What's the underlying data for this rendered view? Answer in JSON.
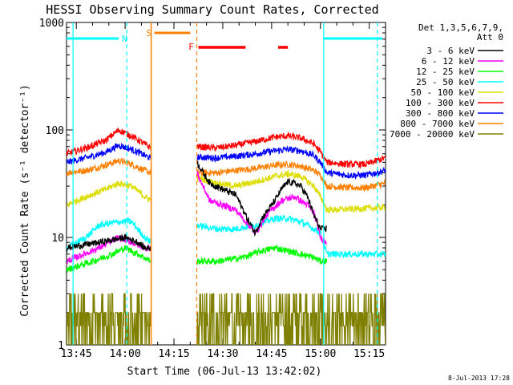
{
  "chart_data": {
    "type": "line",
    "title": "HESSI Observing Summary Count Rates, Corrected",
    "xlabel": "Start Time (06-Jul-13 13:42:02)",
    "ylabel": "Corrected Count Rate (s⁻¹ detector⁻¹)",
    "y_scale": "log",
    "ylim": [
      1,
      1000
    ],
    "xlim_minutes": [
      0,
      98
    ],
    "x_ticks": [
      {
        "m": 3,
        "label": "13:45"
      },
      {
        "m": 18,
        "label": "14:00"
      },
      {
        "m": 33,
        "label": "14:15"
      },
      {
        "m": 48,
        "label": "14:30"
      },
      {
        "m": 63,
        "label": "14:45"
      },
      {
        "m": 78,
        "label": "15:00"
      },
      {
        "m": 93,
        "label": "15:15"
      }
    ],
    "y_ticks": [
      {
        "v": 1,
        "label": "1"
      },
      {
        "v": 10,
        "label": "10"
      },
      {
        "v": 100,
        "label": "100"
      },
      {
        "v": 1000,
        "label": "1000"
      }
    ],
    "legend_header": [
      "Det 1,3,5,6,7,9,",
      "Att 0"
    ],
    "legend_position": "top-right",
    "gap_minutes": [
      26,
      40
    ],
    "series": [
      {
        "name": "3 - 6 keV",
        "color": "#000000",
        "points": [
          [
            0,
            8
          ],
          [
            10,
            9
          ],
          [
            18,
            10
          ],
          [
            22,
            9
          ],
          [
            24,
            8
          ],
          [
            26,
            8
          ],
          [
            40,
            50
          ],
          [
            44,
            32
          ],
          [
            48,
            28
          ],
          [
            52,
            25
          ],
          [
            56,
            14
          ],
          [
            58,
            11
          ],
          [
            60,
            15
          ],
          [
            64,
            22
          ],
          [
            66,
            28
          ],
          [
            68,
            33
          ],
          [
            70,
            32
          ],
          [
            72,
            30
          ],
          [
            74,
            24
          ],
          [
            76,
            16
          ],
          [
            78,
            12
          ],
          [
            80,
            12
          ]
        ]
      },
      {
        "name": "6 - 12 keV",
        "color": "#ff00ff",
        "points": [
          [
            0,
            6
          ],
          [
            10,
            8
          ],
          [
            16,
            10
          ],
          [
            20,
            9
          ],
          [
            24,
            8
          ],
          [
            26,
            8
          ],
          [
            40,
            40
          ],
          [
            44,
            22
          ],
          [
            48,
            20
          ],
          [
            52,
            18
          ],
          [
            56,
            13
          ],
          [
            58,
            11
          ],
          [
            62,
            17
          ],
          [
            66,
            22
          ],
          [
            70,
            24
          ],
          [
            74,
            20
          ],
          [
            76,
            17
          ],
          [
            78,
            10
          ],
          [
            80,
            9
          ]
        ]
      },
      {
        "name": "12 - 25 keV",
        "color": "#00ff00",
        "points": [
          [
            0,
            5
          ],
          [
            8,
            6
          ],
          [
            14,
            7
          ],
          [
            18,
            8
          ],
          [
            22,
            7
          ],
          [
            26,
            6
          ],
          [
            40,
            6
          ],
          [
            46,
            6
          ],
          [
            54,
            6.5
          ],
          [
            60,
            7.5
          ],
          [
            64,
            8
          ],
          [
            68,
            7.5
          ],
          [
            72,
            7
          ],
          [
            76,
            6.5
          ],
          [
            78,
            6
          ],
          [
            80,
            6
          ]
        ]
      },
      {
        "name": "25 - 50 keV",
        "color": "#00ffff",
        "points": [
          [
            0,
            8
          ],
          [
            6,
            10
          ],
          [
            10,
            13
          ],
          [
            16,
            14
          ],
          [
            20,
            14
          ],
          [
            24,
            10
          ],
          [
            26,
            9
          ],
          [
            40,
            13
          ],
          [
            46,
            12
          ],
          [
            52,
            12
          ],
          [
            58,
            13
          ],
          [
            64,
            15
          ],
          [
            68,
            15
          ],
          [
            72,
            14
          ],
          [
            76,
            12
          ],
          [
            78,
            11
          ],
          [
            80,
            7
          ],
          [
            98,
            7
          ]
        ]
      },
      {
        "name": "50 - 100 keV",
        "color": "#dddd00",
        "points": [
          [
            0,
            20
          ],
          [
            6,
            24
          ],
          [
            12,
            28
          ],
          [
            16,
            32
          ],
          [
            20,
            30
          ],
          [
            24,
            24
          ],
          [
            26,
            22
          ],
          [
            40,
            36
          ],
          [
            46,
            32
          ],
          [
            52,
            30
          ],
          [
            58,
            33
          ],
          [
            64,
            37
          ],
          [
            68,
            39
          ],
          [
            72,
            37
          ],
          [
            76,
            30
          ],
          [
            78,
            24
          ],
          [
            80,
            18
          ],
          [
            98,
            19
          ]
        ]
      },
      {
        "name": "100 - 300 keV",
        "color": "#ff0000",
        "points": [
          [
            0,
            60
          ],
          [
            6,
            68
          ],
          [
            12,
            80
          ],
          [
            16,
            100
          ],
          [
            20,
            88
          ],
          [
            24,
            74
          ],
          [
            26,
            68
          ],
          [
            40,
            70
          ],
          [
            46,
            68
          ],
          [
            52,
            72
          ],
          [
            58,
            78
          ],
          [
            64,
            86
          ],
          [
            68,
            88
          ],
          [
            72,
            84
          ],
          [
            76,
            74
          ],
          [
            78,
            62
          ],
          [
            80,
            50
          ],
          [
            86,
            48
          ],
          [
            92,
            48
          ],
          [
            98,
            55
          ]
        ]
      },
      {
        "name": "300 - 800 keV",
        "color": "#0000ff",
        "points": [
          [
            0,
            50
          ],
          [
            6,
            55
          ],
          [
            12,
            62
          ],
          [
            16,
            72
          ],
          [
            20,
            66
          ],
          [
            24,
            58
          ],
          [
            26,
            54
          ],
          [
            40,
            56
          ],
          [
            46,
            55
          ],
          [
            52,
            57
          ],
          [
            58,
            60
          ],
          [
            64,
            64
          ],
          [
            68,
            66
          ],
          [
            72,
            64
          ],
          [
            76,
            58
          ],
          [
            78,
            50
          ],
          [
            80,
            40
          ],
          [
            86,
            38
          ],
          [
            92,
            38
          ],
          [
            98,
            42
          ]
        ]
      },
      {
        "name": "800 - 7000 keV",
        "color": "#ff8000",
        "points": [
          [
            0,
            40
          ],
          [
            6,
            42
          ],
          [
            12,
            47
          ],
          [
            16,
            52
          ],
          [
            20,
            48
          ],
          [
            24,
            42
          ],
          [
            26,
            40
          ],
          [
            40,
            40
          ],
          [
            46,
            40
          ],
          [
            52,
            42
          ],
          [
            58,
            44
          ],
          [
            64,
            47
          ],
          [
            68,
            48
          ],
          [
            72,
            46
          ],
          [
            76,
            42
          ],
          [
            78,
            38
          ],
          [
            80,
            30
          ],
          [
            86,
            29
          ],
          [
            92,
            29
          ],
          [
            98,
            32
          ]
        ]
      },
      {
        "name": "7000 - 20000 keV",
        "color": "#808000",
        "points": [
          [
            0,
            1.8
          ],
          [
            8,
            2.5
          ],
          [
            14,
            2.6
          ],
          [
            18,
            2.5
          ],
          [
            22,
            2.2
          ],
          [
            26,
            2.0
          ],
          [
            40,
            2.1
          ],
          [
            48,
            2.3
          ],
          [
            56,
            2.5
          ],
          [
            64,
            2.4
          ],
          [
            72,
            2.2
          ],
          [
            78,
            2.0
          ],
          [
            84,
            2.0
          ],
          [
            92,
            1.8
          ],
          [
            98,
            1.8
          ]
        ]
      }
    ],
    "annotations": [
      {
        "label": "N",
        "color": "#00ffff"
      },
      {
        "label": "S",
        "color": "#ff8000"
      },
      {
        "label": "F",
        "color": "#ff0000"
      }
    ],
    "timestamp": "8-Jul-2013 17:28"
  }
}
